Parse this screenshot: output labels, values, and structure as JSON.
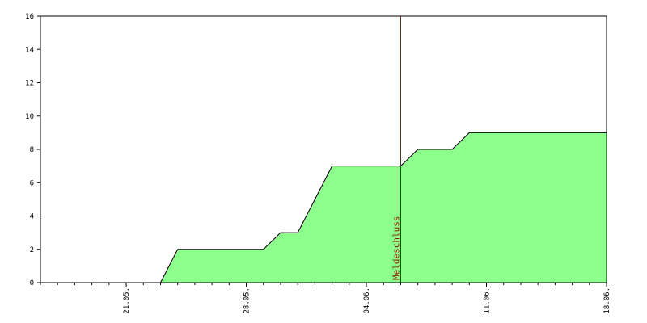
{
  "chart_data": {
    "type": "area",
    "categories": [
      null,
      null,
      null,
      null,
      null,
      "21.05.",
      null,
      null,
      null,
      null,
      null,
      null,
      "28.05.",
      null,
      null,
      null,
      null,
      null,
      null,
      "04.06.",
      null,
      null,
      null,
      null,
      null,
      null,
      "11.06.",
      null,
      null,
      null,
      null,
      null,
      null,
      "18.06."
    ],
    "values": [
      0,
      0,
      0,
      0,
      0,
      0,
      0,
      0,
      2,
      2,
      2,
      2,
      2,
      2,
      3,
      3,
      5,
      7,
      7,
      7,
      7,
      7,
      8,
      8,
      8,
      9,
      9,
      9,
      9,
      9,
      9,
      9,
      9,
      9
    ],
    "color": "#8cff8c",
    "line_color": "#000000",
    "ylim": [
      0,
      16
    ],
    "yticks": [
      0,
      2,
      4,
      6,
      8,
      10,
      12,
      14,
      16
    ],
    "grid": false,
    "annotations": [
      {
        "text": "Meldeschluss",
        "x": 21,
        "color": "#990000"
      }
    ]
  }
}
